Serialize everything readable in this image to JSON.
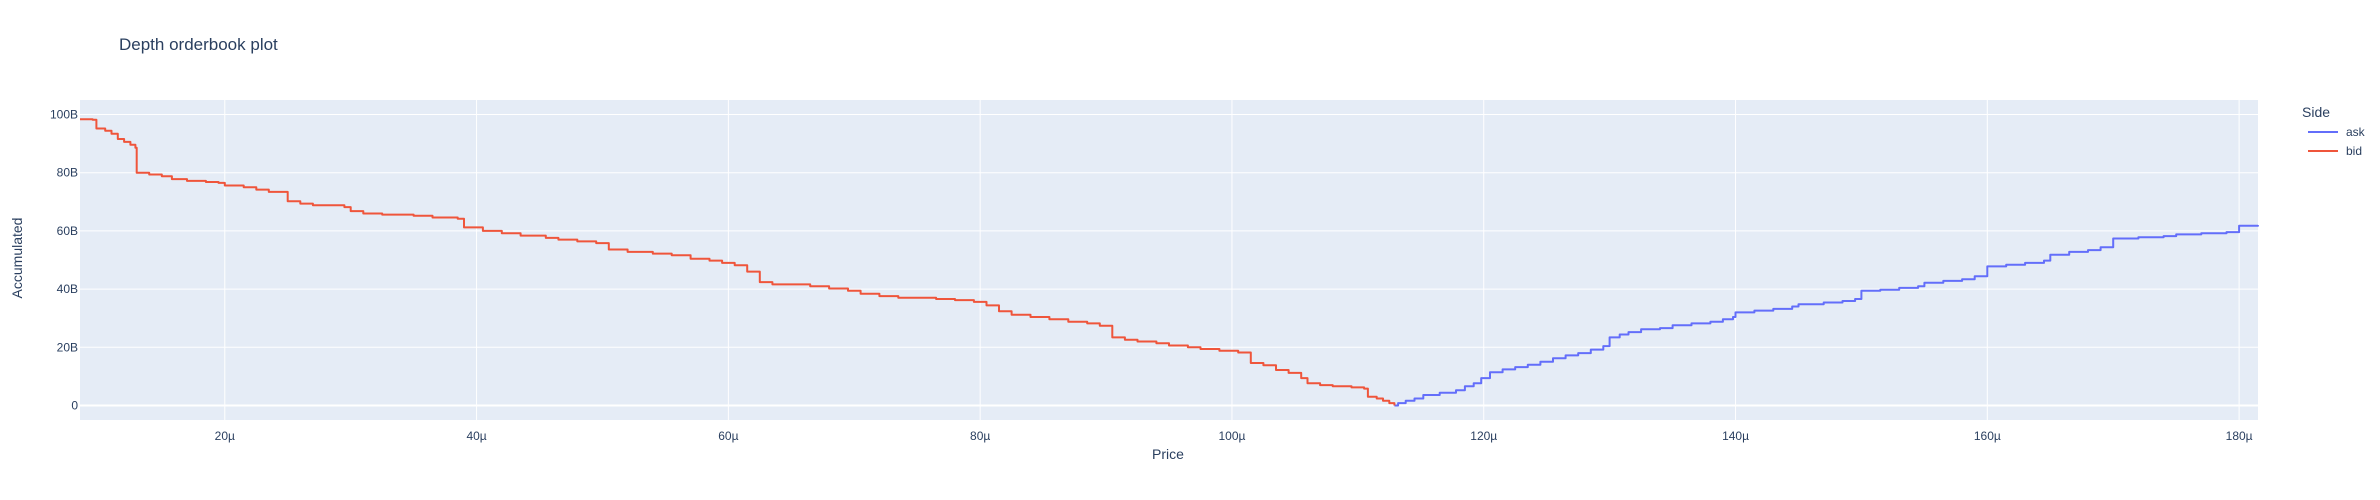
{
  "chart_data": {
    "type": "line",
    "title": "Depth orderbook plot",
    "xlabel": "Price",
    "ylabel": "Accumulated",
    "xlim": [
      8.5,
      181.5
    ],
    "ylim": [
      -5,
      105
    ],
    "x_unit_note": "µ",
    "x_ticks": [
      {
        "value": 20,
        "label": "20µ"
      },
      {
        "value": 40,
        "label": "40µ"
      },
      {
        "value": 60,
        "label": "60µ"
      },
      {
        "value": 80,
        "label": "80µ"
      },
      {
        "value": 100,
        "label": "100µ"
      },
      {
        "value": 120,
        "label": "120µ"
      },
      {
        "value": 140,
        "label": "140µ"
      },
      {
        "value": 160,
        "label": "160µ"
      },
      {
        "value": 180,
        "label": "180µ"
      }
    ],
    "y_ticks": [
      {
        "value": 0,
        "label": "0"
      },
      {
        "value": 20,
        "label": "20B"
      },
      {
        "value": 40,
        "label": "40B"
      },
      {
        "value": 60,
        "label": "60B"
      },
      {
        "value": 80,
        "label": "80B"
      },
      {
        "value": 100,
        "label": "100B"
      }
    ],
    "grid": true,
    "legend": {
      "title": "Side",
      "placement": "right-top"
    },
    "series": [
      {
        "name": "ask",
        "color": "#636efa",
        "step": true,
        "points": [
          [
            112.9,
            0
          ],
          [
            113.2,
            0.8
          ],
          [
            113.8,
            1.6
          ],
          [
            114.5,
            2.4
          ],
          [
            115.2,
            3.6
          ],
          [
            116.5,
            4.4
          ],
          [
            117.8,
            5.2
          ],
          [
            118.5,
            6.6
          ],
          [
            119.2,
            7.6
          ],
          [
            119.8,
            9.4
          ],
          [
            120.5,
            11.4
          ],
          [
            121.5,
            12.4
          ],
          [
            122.5,
            13.2
          ],
          [
            123.5,
            14.0
          ],
          [
            124.5,
            15.0
          ],
          [
            125.5,
            16.2
          ],
          [
            126.5,
            17.2
          ],
          [
            127.5,
            18.0
          ],
          [
            128.5,
            19.2
          ],
          [
            129.5,
            20.4
          ],
          [
            130.0,
            23.4
          ],
          [
            130.8,
            24.4
          ],
          [
            131.5,
            25.2
          ],
          [
            132.5,
            26.2
          ],
          [
            134.0,
            26.6
          ],
          [
            135.0,
            27.6
          ],
          [
            136.5,
            28.2
          ],
          [
            138.0,
            28.8
          ],
          [
            139.0,
            29.6
          ],
          [
            139.8,
            30.4
          ],
          [
            140.0,
            32.0
          ],
          [
            141.5,
            32.6
          ],
          [
            143.0,
            33.2
          ],
          [
            144.5,
            34.0
          ],
          [
            145.0,
            34.8
          ],
          [
            147.0,
            35.4
          ],
          [
            148.5,
            35.9
          ],
          [
            149.5,
            36.6
          ],
          [
            150.0,
            39.4
          ],
          [
            151.5,
            39.8
          ],
          [
            153.0,
            40.4
          ],
          [
            154.5,
            41.0
          ],
          [
            155.0,
            42.2
          ],
          [
            156.5,
            42.8
          ],
          [
            158.0,
            43.4
          ],
          [
            159.0,
            44.4
          ],
          [
            160.0,
            47.8
          ],
          [
            161.5,
            48.4
          ],
          [
            163.0,
            49.0
          ],
          [
            164.5,
            49.8
          ],
          [
            165.0,
            51.8
          ],
          [
            166.5,
            52.8
          ],
          [
            168.0,
            53.4
          ],
          [
            169.0,
            54.4
          ],
          [
            170.0,
            57.4
          ],
          [
            172.0,
            57.8
          ],
          [
            174.0,
            58.2
          ],
          [
            175.0,
            58.8
          ],
          [
            177.0,
            59.2
          ],
          [
            179.0,
            59.6
          ],
          [
            180.0,
            61.8
          ],
          [
            181.5,
            62.0
          ]
        ]
      },
      {
        "name": "bid",
        "color": "#ef553b",
        "step": true,
        "points": [
          [
            8.5,
            98.4
          ],
          [
            9.5,
            98.2
          ],
          [
            9.8,
            95.2
          ],
          [
            10.5,
            94.4
          ],
          [
            11.0,
            93.4
          ],
          [
            11.5,
            91.6
          ],
          [
            12.0,
            90.6
          ],
          [
            12.5,
            89.6
          ],
          [
            12.9,
            88.6
          ],
          [
            13.0,
            80.0
          ],
          [
            14.0,
            79.4
          ],
          [
            15.0,
            78.8
          ],
          [
            15.8,
            77.8
          ],
          [
            17.0,
            77.2
          ],
          [
            18.5,
            76.8
          ],
          [
            19.5,
            76.5
          ],
          [
            20.0,
            75.6
          ],
          [
            21.5,
            75.0
          ],
          [
            22.5,
            74.2
          ],
          [
            23.5,
            73.4
          ],
          [
            25.0,
            70.2
          ],
          [
            26.0,
            69.4
          ],
          [
            27.0,
            68.8
          ],
          [
            29.5,
            68.2
          ],
          [
            30.0,
            66.8
          ],
          [
            31.0,
            66.0
          ],
          [
            32.5,
            65.6
          ],
          [
            35.0,
            65.2
          ],
          [
            36.5,
            64.6
          ],
          [
            38.5,
            64.2
          ],
          [
            39.0,
            61.2
          ],
          [
            40.5,
            60.0
          ],
          [
            42.0,
            59.2
          ],
          [
            43.5,
            58.4
          ],
          [
            45.5,
            57.6
          ],
          [
            46.5,
            57.0
          ],
          [
            48.0,
            56.4
          ],
          [
            49.5,
            55.8
          ],
          [
            50.5,
            53.6
          ],
          [
            52.0,
            52.8
          ],
          [
            54.0,
            52.2
          ],
          [
            55.5,
            51.6
          ],
          [
            57.0,
            50.4
          ],
          [
            58.5,
            49.8
          ],
          [
            59.5,
            49.0
          ],
          [
            60.5,
            48.2
          ],
          [
            61.5,
            46.0
          ],
          [
            62.5,
            42.4
          ],
          [
            63.5,
            41.6
          ],
          [
            66.5,
            41.0
          ],
          [
            68.0,
            40.2
          ],
          [
            69.5,
            39.4
          ],
          [
            70.5,
            38.4
          ],
          [
            72.0,
            37.6
          ],
          [
            73.5,
            37.0
          ],
          [
            76.5,
            36.6
          ],
          [
            78.0,
            36.2
          ],
          [
            79.5,
            35.6
          ],
          [
            80.5,
            34.4
          ],
          [
            81.5,
            32.4
          ],
          [
            82.5,
            31.2
          ],
          [
            84.0,
            30.4
          ],
          [
            85.5,
            29.6
          ],
          [
            87.0,
            28.8
          ],
          [
            88.5,
            28.2
          ],
          [
            89.5,
            27.4
          ],
          [
            90.5,
            23.4
          ],
          [
            91.5,
            22.6
          ],
          [
            92.5,
            22.0
          ],
          [
            94.0,
            21.4
          ],
          [
            95.0,
            20.6
          ],
          [
            96.5,
            20.0
          ],
          [
            97.5,
            19.4
          ],
          [
            99.0,
            18.8
          ],
          [
            100.5,
            18.2
          ],
          [
            101.5,
            14.6
          ],
          [
            102.5,
            13.8
          ],
          [
            103.5,
            12.2
          ],
          [
            104.5,
            11.2
          ],
          [
            105.5,
            9.4
          ],
          [
            106.0,
            7.6
          ],
          [
            107.0,
            7.0
          ],
          [
            108.0,
            6.6
          ],
          [
            109.5,
            6.2
          ],
          [
            110.5,
            5.8
          ],
          [
            110.8,
            3.0
          ],
          [
            111.5,
            2.4
          ],
          [
            112.0,
            1.6
          ],
          [
            112.5,
            0.8
          ],
          [
            112.9,
            0
          ]
        ]
      }
    ]
  }
}
